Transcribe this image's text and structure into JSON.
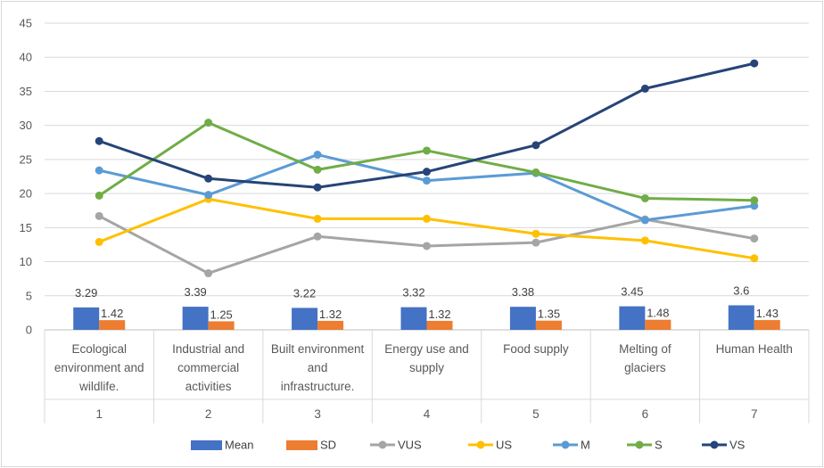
{
  "chart_data": {
    "type": "bar+line",
    "title": "",
    "xlabel": "",
    "ylabel": "",
    "ylim": [
      0,
      45
    ],
    "ytick_step": 5,
    "grid": true,
    "legend_position": "bottom",
    "categories": [
      {
        "number": "1",
        "label": [
          "Ecological",
          "environment and",
          "wildlife."
        ]
      },
      {
        "number": "2",
        "label": [
          "Industrial and",
          "commercial",
          "activities"
        ]
      },
      {
        "number": "3",
        "label": [
          "Built environment",
          "and",
          "infrastructure."
        ]
      },
      {
        "number": "4",
        "label": [
          "Energy use and",
          "supply"
        ]
      },
      {
        "number": "5",
        "label": [
          "Food supply"
        ]
      },
      {
        "number": "6",
        "label": [
          "Melting of",
          "glaciers"
        ]
      },
      {
        "number": "7",
        "label": [
          "Human Health"
        ]
      }
    ],
    "bar_series": [
      {
        "name": "Mean",
        "color": "#4472c4",
        "values": [
          3.29,
          3.39,
          3.22,
          3.32,
          3.38,
          3.45,
          3.6
        ],
        "labels": [
          "3.29",
          "3.39",
          "3.22",
          "3.32",
          "3.38",
          "3.45",
          "3.6"
        ]
      },
      {
        "name": "SD",
        "color": "#ed7d31",
        "values": [
          1.42,
          1.25,
          1.32,
          1.32,
          1.35,
          1.48,
          1.43
        ],
        "labels": [
          "1.42",
          "1.25",
          "1.32",
          "1.32",
          "1.35",
          "1.48",
          "1.43"
        ]
      }
    ],
    "line_series": [
      {
        "name": "VUS",
        "color": "#a5a5a5",
        "values": [
          16.7,
          8.3,
          13.7,
          12.3,
          12.8,
          16.2,
          13.4
        ]
      },
      {
        "name": "US",
        "color": "#ffc000",
        "values": [
          12.9,
          19.2,
          16.3,
          16.3,
          14.1,
          13.1,
          10.5
        ]
      },
      {
        "name": "M",
        "color": "#5b9bd5",
        "values": [
          23.4,
          19.8,
          25.7,
          21.9,
          23.0,
          16.1,
          18.2
        ]
      },
      {
        "name": "S",
        "color": "#70ad47",
        "values": [
          19.7,
          30.4,
          23.5,
          26.3,
          23.1,
          19.3,
          19.0
        ]
      },
      {
        "name": "VS",
        "color": "#264478",
        "values": [
          27.7,
          22.2,
          20.9,
          23.2,
          27.1,
          35.4,
          39.1
        ]
      }
    ],
    "legend": [
      "Mean",
      "SD",
      "VUS",
      "US",
      "M",
      "S",
      "VS"
    ]
  }
}
